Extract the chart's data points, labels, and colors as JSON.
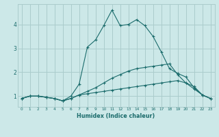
{
  "xlabel": "Humidex (Indice chaleur)",
  "background_color": "#cce8e8",
  "grid_color": "#aacccc",
  "line_color": "#1a6b6b",
  "xlim": [
    -0.5,
    23.5
  ],
  "ylim": [
    0.55,
    4.85
  ],
  "xticks": [
    0,
    1,
    2,
    3,
    4,
    5,
    6,
    7,
    8,
    9,
    10,
    11,
    12,
    13,
    14,
    15,
    16,
    17,
    18,
    19,
    20,
    21,
    22,
    23
  ],
  "yticks": [
    1,
    2,
    3,
    4
  ],
  "line1_x": [
    0,
    1,
    2,
    3,
    4,
    5,
    6,
    7,
    8,
    9,
    10,
    11,
    12,
    13,
    14,
    15,
    16,
    17,
    18,
    19,
    20,
    21,
    22,
    23
  ],
  "line1_y": [
    0.9,
    1.0,
    1.0,
    0.95,
    0.9,
    0.8,
    0.9,
    1.05,
    1.1,
    1.15,
    1.2,
    1.25,
    1.3,
    1.35,
    1.4,
    1.45,
    1.5,
    1.55,
    1.6,
    1.65,
    1.55,
    1.4,
    1.05,
    0.9
  ],
  "line2_x": [
    0,
    1,
    2,
    3,
    4,
    5,
    6,
    7,
    8,
    9,
    10,
    11,
    12,
    13,
    14,
    15,
    16,
    17,
    18,
    19,
    20,
    21,
    22,
    23
  ],
  "line2_y": [
    0.9,
    1.0,
    1.0,
    0.95,
    0.9,
    0.8,
    0.9,
    1.05,
    1.2,
    1.35,
    1.55,
    1.75,
    1.9,
    2.05,
    2.15,
    2.2,
    2.25,
    2.3,
    2.35,
    1.9,
    1.55,
    1.3,
    1.05,
    0.9
  ],
  "line3_x": [
    0,
    1,
    2,
    3,
    4,
    5,
    6,
    7,
    8,
    9,
    10,
    11,
    12,
    13,
    14,
    15,
    16,
    17,
    18,
    19,
    20,
    21,
    22,
    23
  ],
  "line3_y": [
    0.9,
    1.0,
    1.0,
    0.95,
    0.9,
    0.8,
    1.0,
    1.5,
    3.05,
    3.35,
    3.95,
    4.6,
    3.95,
    4.0,
    4.2,
    3.95,
    3.5,
    2.85,
    2.15,
    1.95,
    1.8,
    1.35,
    1.05,
    0.9
  ]
}
